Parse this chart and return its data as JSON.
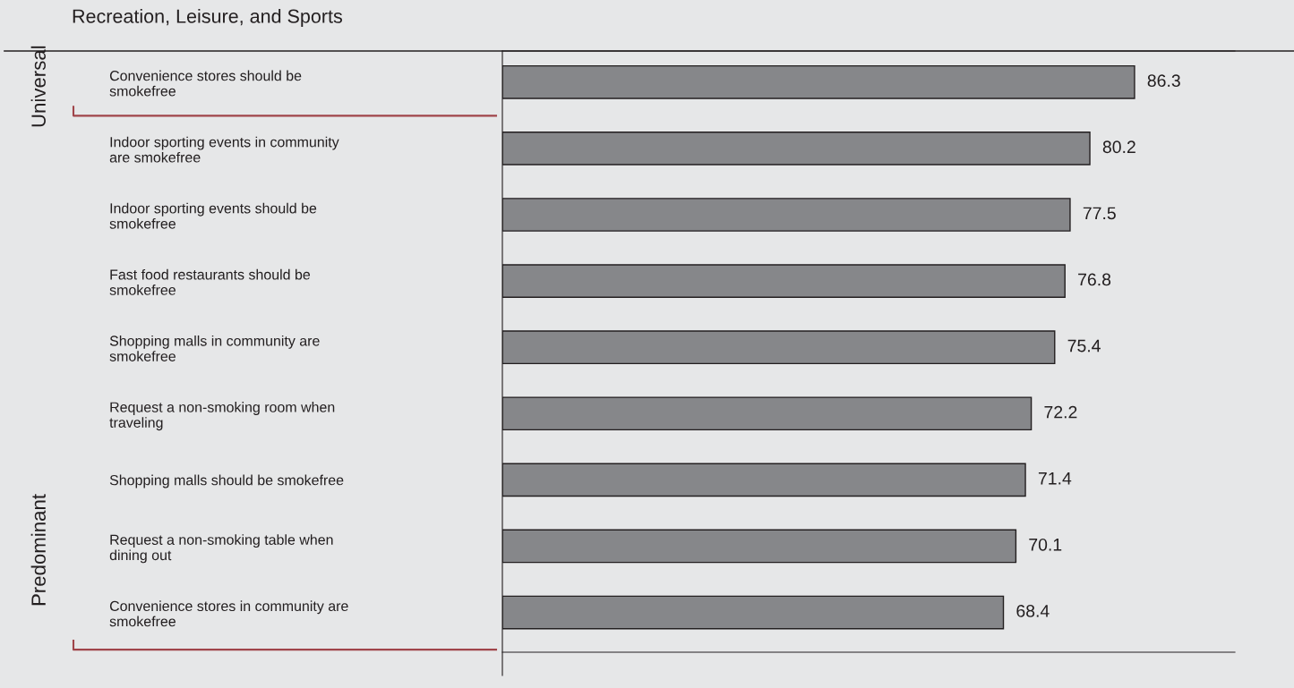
{
  "chart_data": {
    "type": "bar",
    "orientation": "horizontal",
    "title": "Recreation, Leisure, and Sports",
    "categories": [
      "Convenience stores should be smokefree",
      "Indoor sporting events in community are smokefree",
      "Indoor sporting events should be smokefree",
      "Fast food restaurants should be smokefree",
      "Shopping malls in community are smokefree",
      "Request a non-smoking room when traveling",
      "Shopping malls should be smokefree",
      "Request a non-smoking table when dining out",
      "Convenience stores in community are smokefree"
    ],
    "values": [
      86.3,
      80.2,
      77.5,
      76.8,
      75.4,
      72.2,
      71.4,
      70.1,
      68.4
    ],
    "color": "#86878a",
    "data_labels": true,
    "xlim": [
      0,
      100
    ],
    "tick_labels": "y",
    "grid": false,
    "legend": false,
    "annotations": [
      "Universal",
      "Predominant"
    ]
  }
}
